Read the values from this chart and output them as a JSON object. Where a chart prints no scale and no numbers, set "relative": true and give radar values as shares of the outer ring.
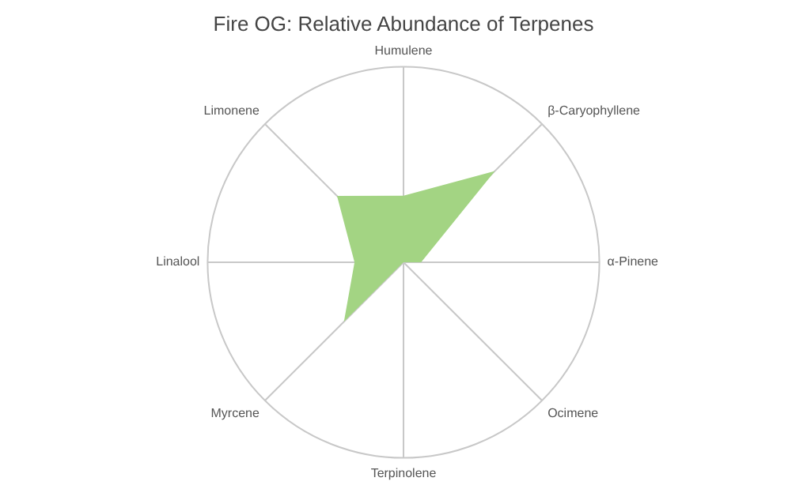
{
  "chart_data": {
    "type": "radar",
    "title": "Fire OG: Relative Abundance of Terpenes",
    "relative": true,
    "categories": [
      "Humulene",
      "β-Caryophyllene",
      "α-Pinene",
      "Ocimene",
      "Terpinolene",
      "Myrcene",
      "Linalool",
      "Limonene"
    ],
    "series": [
      {
        "color": "#a3d483",
        "values": [
          0.34,
          0.66,
          0.09,
          0,
          0,
          0.43,
          0.25,
          0.48
        ]
      }
    ],
    "legend": false
  }
}
